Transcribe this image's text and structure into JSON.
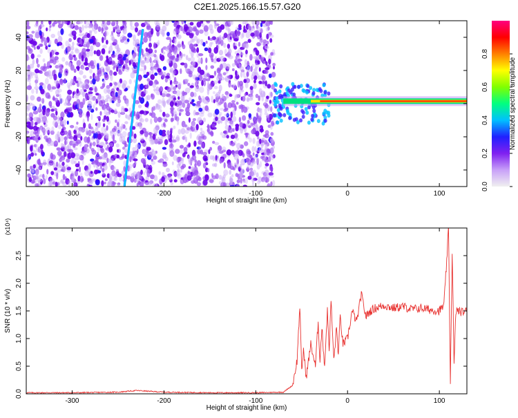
{
  "title": "C2E1.2025.166.15.57.G20",
  "colors": {
    "curve": "#e8302e",
    "scatter_dark": "#6a00e8",
    "scatter_light": "#c9a8f6",
    "colorbar_stops": [
      "#f0f0f0",
      "#c8a0f8",
      "#8020f0",
      "#2020ff",
      "#00c0ff",
      "#00ff80",
      "#80ff00",
      "#ffff00",
      "#ff8000",
      "#ff0000",
      "#ff0080"
    ]
  },
  "chart_data": [
    {
      "type": "heatmap",
      "xlabel": "Height of straight line (km)",
      "ylabel": "Frequency (Hz)",
      "xlim": [
        -350,
        130
      ],
      "ylim": [
        -50,
        50
      ],
      "xticks": [
        -300,
        -200,
        -100,
        0,
        100
      ],
      "xticklabels": [
        "-300",
        "-200",
        "-100",
        "0",
        "100"
      ],
      "yticks": [
        -40,
        -20,
        0,
        20,
        40
      ],
      "yticklabels": [
        "-40",
        "-20",
        "0",
        "20",
        "40"
      ],
      "colorbar": {
        "label": "Normalized spectral amplitude",
        "range": [
          0,
          1
        ],
        "ticks": [
          0.0,
          0.2,
          0.4,
          0.6,
          0.8
        ],
        "ticklabels": [
          "0.0",
          "0.2",
          "0.4",
          "0.6",
          "0.8"
        ]
      },
      "features": {
        "diagonal_line": {
          "x_start": -243,
          "y_start": -50,
          "x_end": -223,
          "y_end": 45,
          "amplitude": 0.3
        },
        "constant_band": {
          "x_start": -70,
          "x_end": 130,
          "frequency": 1.5,
          "amplitude": 0.95
        },
        "noise_region_x": [
          -350,
          -80
        ]
      },
      "grid": false,
      "legend": "none"
    },
    {
      "type": "line",
      "xlabel": "Height of straight line (km)",
      "ylabel": "SNR (10 * v/v)",
      "y_multiplier": "(x10⁴)",
      "xlim": [
        -350,
        130
      ],
      "ylim": [
        0,
        3.0
      ],
      "xticks": [
        -300,
        -200,
        -100,
        0,
        100
      ],
      "xticklabels": [
        "-300",
        "-200",
        "-100",
        "0",
        "100"
      ],
      "yticks": [
        0.0,
        0.5,
        1.0,
        1.5,
        2.0,
        2.5
      ],
      "yticklabels": [
        "0.0",
        "0.5",
        "1.0",
        "1.5",
        "2.0",
        "2.5"
      ],
      "series": [
        {
          "x": [
            -350,
            -300,
            -250,
            -230,
            -220,
            -200,
            -150,
            -100,
            -70,
            -60,
            -55,
            -52,
            -50,
            -48,
            -45,
            -40,
            -35,
            -32,
            -30,
            -28,
            -25,
            -22,
            -20,
            -18,
            -15,
            -12,
            -10,
            -8,
            -5,
            0,
            5,
            10,
            15,
            20,
            25,
            30,
            40,
            50,
            60,
            70,
            80,
            90,
            100,
            105,
            108,
            110,
            112,
            114,
            116,
            118,
            120,
            125,
            130
          ],
          "y": [
            0.02,
            0.02,
            0.03,
            0.06,
            0.05,
            0.03,
            0.02,
            0.02,
            0.03,
            0.15,
            0.6,
            1.6,
            0.4,
            0.8,
            0.3,
            0.9,
            0.5,
            1.3,
            0.6,
            1.2,
            0.5,
            1.5,
            0.8,
            1.7,
            0.6,
            1.2,
            0.7,
            1.4,
            0.9,
            1.0,
            1.5,
            1.3,
            1.8,
            1.4,
            1.5,
            1.55,
            1.6,
            1.55,
            1.58,
            1.53,
            1.55,
            1.52,
            1.5,
            1.6,
            2.4,
            3.0,
            0.2,
            2.6,
            0.5,
            1.5,
            1.5,
            1.48,
            1.5
          ]
        }
      ],
      "grid": false,
      "legend": "none"
    }
  ]
}
